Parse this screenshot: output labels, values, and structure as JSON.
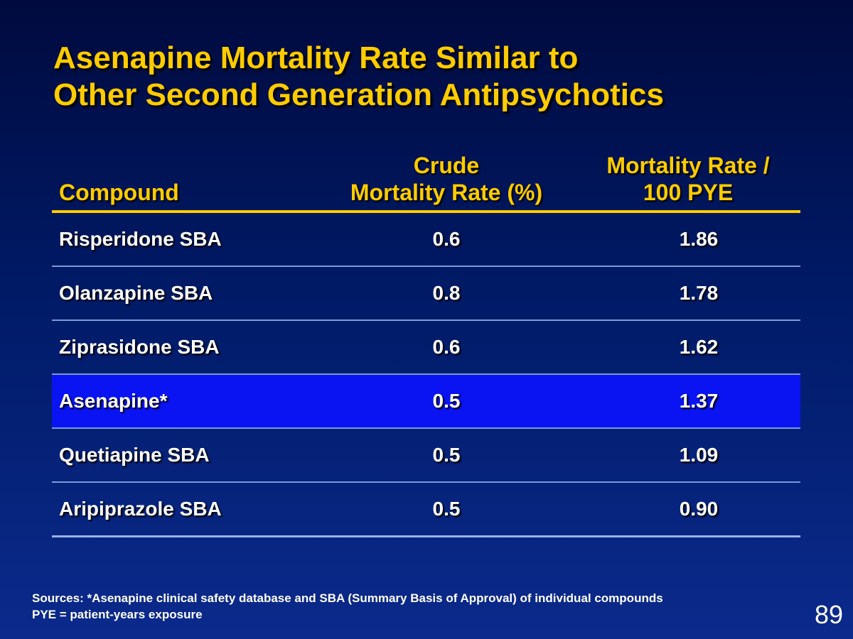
{
  "slide": {
    "title_line1": "Asenapine Mortality Rate Similar to",
    "title_line2": "Other Second Generation Antipsychotics",
    "page_number": "89"
  },
  "table": {
    "headers": {
      "compound": "Compound",
      "crude_line1": "Crude",
      "crude_line2": "Mortality Rate (%)",
      "mortality_line1": "Mortality Rate /",
      "mortality_line2": "100 PYE"
    },
    "rows": [
      {
        "compound": "Risperidone SBA",
        "crude": "0.6",
        "rate": "1.86"
      },
      {
        "compound": "Olanzapine SBA",
        "crude": "0.8",
        "rate": "1.78"
      },
      {
        "compound": "Ziprasidone SBA",
        "crude": "0.6",
        "rate": "1.62"
      },
      {
        "compound": "Asenapine*",
        "crude": "0.5",
        "rate": "1.37"
      },
      {
        "compound": "Quetiapine SBA",
        "crude": "0.5",
        "rate": "1.09"
      },
      {
        "compound": "Aripiprazole SBA",
        "crude": "0.5",
        "rate": "0.90"
      }
    ]
  },
  "footnotes": {
    "line1": "Sources: *Asenapine clinical safety database and SBA (Summary Basis of Approval) of individual compounds",
    "line2": "PYE = patient-years exposure"
  },
  "colors": {
    "title": "#ffcc00",
    "highlight_row": "#0a14f2",
    "background": "#001a66"
  }
}
